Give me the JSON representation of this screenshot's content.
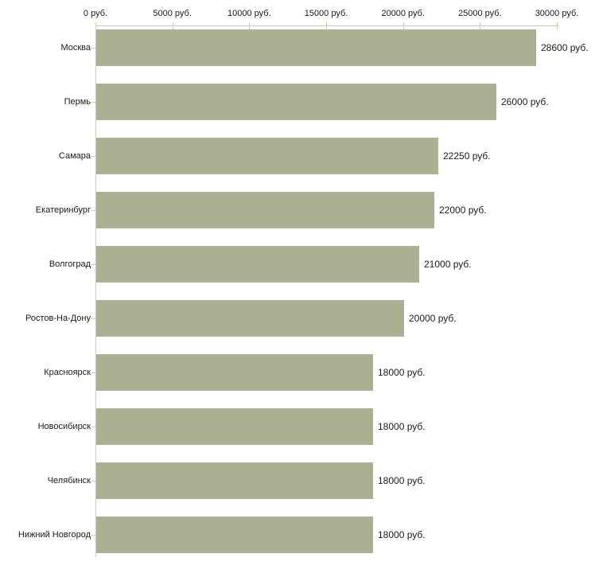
{
  "chart_data": {
    "type": "bar",
    "orientation": "horizontal",
    "title": "",
    "xlabel": "",
    "ylabel": "",
    "xlim": [
      0,
      30000
    ],
    "grid": false,
    "legend": "none",
    "x_axis_position": "top",
    "x_ticks": [
      {
        "value": 0,
        "label": "0 руб."
      },
      {
        "value": 5000,
        "label": "5000 руб."
      },
      {
        "value": 10000,
        "label": "10000 руб."
      },
      {
        "value": 15000,
        "label": "15000 руб."
      },
      {
        "value": 20000,
        "label": "20000 руб."
      },
      {
        "value": 25000,
        "label": "25000 руб."
      },
      {
        "value": 30000,
        "label": "30000 руб."
      }
    ],
    "categories": [
      "Москва",
      "Пермь",
      "Самара",
      "Екатеринбург",
      "Волгоград",
      "Ростов-На-Дону",
      "Красноярск",
      "Новосибирск",
      "Челябинск",
      "Нижний Новгород"
    ],
    "values": [
      28600,
      26000,
      22250,
      22000,
      21000,
      20000,
      18000,
      18000,
      18000,
      18000
    ],
    "value_labels": [
      "28600 руб.",
      "26000 руб.",
      "22250 руб.",
      "22000 руб.",
      "21000 руб.",
      "20000 руб.",
      "18000 руб.",
      "18000 руб.",
      "18000 руб.",
      "18000 руб."
    ]
  },
  "colors": {
    "bar": "#abb093",
    "axis": "#c6c6c6",
    "tick": "#cfd2ab",
    "text": "#1c1c1c",
    "background": "#ffffff"
  }
}
